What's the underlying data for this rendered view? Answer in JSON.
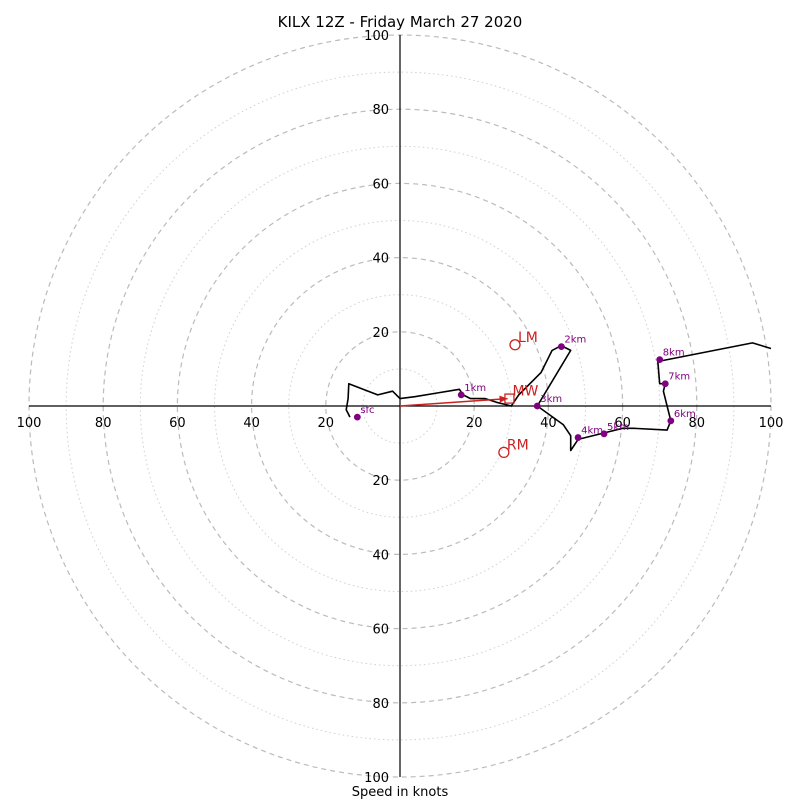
{
  "chart_data": {
    "type": "line",
    "title": "KILX 12Z - Friday March 27 2020",
    "xlabel": "Speed in knots",
    "ylabel": "",
    "xlim": [
      -100,
      100
    ],
    "ylim": [
      -100,
      100
    ],
    "grid": true,
    "ring_tick_labels": [
      "100",
      "80",
      "60",
      "40",
      "20",
      "20",
      "40",
      "60",
      "80",
      "100"
    ],
    "axis_tick_values": [
      -100,
      -80,
      -60,
      -40,
      -20,
      20,
      40,
      60,
      80,
      100
    ],
    "major_rings": [
      20,
      40,
      60,
      80,
      100
    ],
    "minor_rings": [
      10,
      30,
      50,
      70,
      90
    ],
    "colors": {
      "profile": "#000000",
      "height_markers": "#800080",
      "motion": "#cc2222",
      "grid": "#bbbbbb"
    },
    "series": [
      {
        "points": [
          [
            -13.5,
            -3
          ],
          [
            -14.0,
            -2
          ],
          [
            -14.5,
            -1
          ],
          [
            -14.0,
            2
          ],
          [
            -13.8,
            6
          ],
          [
            -6,
            3
          ],
          [
            -2,
            4
          ],
          [
            0,
            2
          ],
          [
            4,
            2.5
          ],
          [
            10,
            3.5
          ],
          [
            16,
            4.5
          ],
          [
            17,
            3
          ],
          [
            19,
            2
          ],
          [
            23,
            2
          ],
          [
            26,
            1
          ],
          [
            28,
            0.5
          ],
          [
            30,
            0
          ],
          [
            32,
            3
          ],
          [
            35,
            6
          ],
          [
            38,
            9
          ],
          [
            40,
            13
          ],
          [
            41,
            15
          ],
          [
            43,
            16
          ],
          [
            44,
            16
          ],
          [
            46,
            15
          ],
          [
            37,
            0
          ],
          [
            44,
            -5
          ],
          [
            46,
            -8
          ],
          [
            46,
            -12
          ],
          [
            48,
            -9
          ],
          [
            56,
            -7
          ],
          [
            60,
            -6
          ],
          [
            63,
            -6
          ],
          [
            72,
            -6.5
          ],
          [
            73,
            -4
          ],
          [
            71,
            4
          ],
          [
            71.5,
            6
          ],
          [
            70,
            6
          ],
          [
            69.5,
            12
          ],
          [
            95,
            17
          ],
          [
            100,
            15.5
          ]
        ]
      }
    ],
    "height_markers": [
      {
        "label": "sfc",
        "u": -11.5,
        "v": -3
      },
      {
        "label": "1km",
        "u": 16.5,
        "v": 3
      },
      {
        "label": "2km",
        "u": 43.5,
        "v": 16
      },
      {
        "label": "3km",
        "u": 37,
        "v": 0
      },
      {
        "label": "4km",
        "u": 48,
        "v": -8.5
      },
      {
        "label": "5km",
        "u": 55,
        "v": -7.5
      },
      {
        "label": "6km",
        "u": 73,
        "v": -4
      },
      {
        "label": "7km",
        "u": 71.5,
        "v": 6
      },
      {
        "label": "8km",
        "u": 70,
        "v": 12.5
      }
    ],
    "motion_markers": [
      {
        "label": "LM",
        "u": 31,
        "v": 16.5,
        "shape": "circle"
      },
      {
        "label": "MW",
        "u": 29.5,
        "v": 2,
        "shape": "square"
      },
      {
        "label": "RM",
        "u": 28,
        "v": -12.5,
        "shape": "circle"
      }
    ],
    "shear_vector": {
      "from": [
        0,
        0
      ],
      "to": [
        29,
        2
      ]
    }
  }
}
